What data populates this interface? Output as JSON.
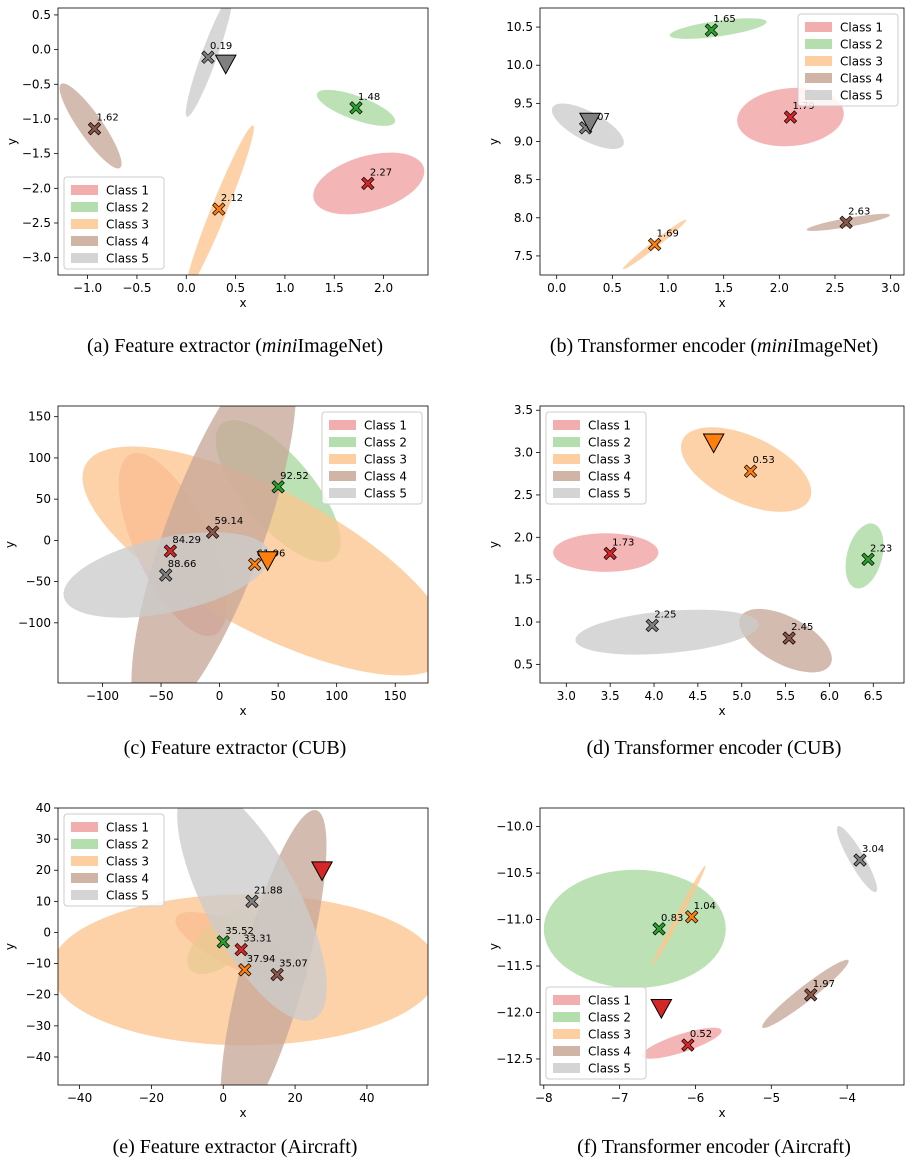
{
  "legend_labels": [
    "Class 1",
    "Class 2",
    "Class 3",
    "Class 4",
    "Class 5"
  ],
  "class_colors": [
    "#d62728",
    "#2ca02c",
    "#ff7f0e",
    "#8c564b",
    "#7f7f7f"
  ],
  "class_fill_colors": [
    "#f0a0a0",
    "#a8d8a0",
    "#fcc58f",
    "#c8a898",
    "#cccccc"
  ],
  "chart_data": [
    {
      "type": "scatter",
      "panel": "a",
      "caption": [
        "(a) Feature extractor (",
        "mini",
        "ImageNet)"
      ],
      "xlabel": "x",
      "ylabel": "y",
      "xlim": [
        -1.3,
        2.45
      ],
      "ylim": [
        -3.25,
        0.6
      ],
      "xticks": [
        -1.0,
        -0.5,
        0.0,
        0.5,
        1.0,
        1.5,
        2.0
      ],
      "xtick_labels": [
        "−1.0",
        "−0.5",
        "0.0",
        "0.5",
        "1.0",
        "1.5",
        "2.0"
      ],
      "yticks": [
        0.5,
        0.0,
        -0.5,
        -1.0,
        -1.5,
        -2.0,
        -2.5,
        -3.0
      ],
      "ytick_labels": [
        "0.5",
        "0.0",
        "−0.5",
        "−1.0",
        "−1.5",
        "−2.0",
        "−2.5",
        "−3.0"
      ],
      "legend": "lower-left",
      "ellipses": [
        {
          "class": 0,
          "cx": 1.85,
          "cy": -1.93,
          "rx": 0.58,
          "ry": 0.28,
          "angle": 16
        },
        {
          "class": 1,
          "cx": 1.72,
          "cy": -0.84,
          "rx": 0.42,
          "ry": 0.12,
          "angle": -20
        },
        {
          "class": 2,
          "cx": 0.34,
          "cy": -2.28,
          "rx": 0.9,
          "ry": 0.08,
          "angle": 68
        },
        {
          "class": 3,
          "cx": -0.97,
          "cy": -1.1,
          "rx": 0.52,
          "ry": 0.12,
          "angle": -55
        },
        {
          "class": 4,
          "cx": 0.23,
          "cy": -0.1,
          "rx": 0.65,
          "ry": 0.08,
          "angle": 70
        }
      ],
      "points": [
        {
          "class": 0,
          "x": 1.84,
          "y": -1.93,
          "label": "2.27"
        },
        {
          "class": 1,
          "x": 1.72,
          "y": -0.84,
          "label": "1.48"
        },
        {
          "class": 2,
          "x": 0.33,
          "y": -2.3,
          "label": "2.12"
        },
        {
          "class": 3,
          "x": -0.93,
          "y": -1.14,
          "label": "1.62"
        },
        {
          "class": 4,
          "x": 0.22,
          "y": -0.11,
          "label": "0.19"
        }
      ],
      "query": {
        "class": 4,
        "x": 0.4,
        "y": -0.2
      }
    },
    {
      "type": "scatter",
      "panel": "b",
      "caption": [
        "(b) Transformer encoder (",
        "mini",
        "ImageNet)"
      ],
      "xlabel": "x",
      "ylabel": "y",
      "xlim": [
        -0.15,
        3.12
      ],
      "ylim": [
        7.25,
        10.75
      ],
      "xticks": [
        0.0,
        0.5,
        1.0,
        1.5,
        2.0,
        2.5,
        3.0
      ],
      "xtick_labels": [
        "0.0",
        "0.5",
        "1.0",
        "1.5",
        "2.0",
        "2.5",
        "3.0"
      ],
      "yticks": [
        10.5,
        10.0,
        9.5,
        9.0,
        8.5,
        8.0,
        7.5
      ],
      "ytick_labels": [
        "10.5",
        "10.0",
        "9.5",
        "9.0",
        "8.5",
        "8.0",
        "7.5"
      ],
      "legend": "upper-right",
      "ellipses": [
        {
          "class": 0,
          "cx": 2.1,
          "cy": 9.32,
          "rx": 0.48,
          "ry": 0.26,
          "angle": 5
        },
        {
          "class": 1,
          "cx": 1.45,
          "cy": 10.48,
          "rx": 0.44,
          "ry": 0.07,
          "angle": 8
        },
        {
          "class": 2,
          "cx": 0.88,
          "cy": 7.65,
          "rx": 0.36,
          "ry": 0.03,
          "angle": 38
        },
        {
          "class": 3,
          "cx": 2.62,
          "cy": 7.94,
          "rx": 0.38,
          "ry": 0.04,
          "angle": 10
        },
        {
          "class": 4,
          "cx": 0.28,
          "cy": 9.2,
          "rx": 0.36,
          "ry": 0.13,
          "angle": -28
        }
      ],
      "points": [
        {
          "class": 0,
          "x": 2.1,
          "y": 9.32,
          "label": "1.79"
        },
        {
          "class": 1,
          "x": 1.39,
          "y": 10.46,
          "label": "1.65"
        },
        {
          "class": 2,
          "x": 0.88,
          "y": 7.65,
          "label": "1.69"
        },
        {
          "class": 3,
          "x": 2.6,
          "y": 7.94,
          "label": "2.63"
        },
        {
          "class": 4,
          "x": 0.26,
          "y": 9.18,
          "label": "0.07"
        }
      ],
      "query": {
        "class": 4,
        "x": 0.3,
        "y": 9.26
      }
    },
    {
      "type": "scatter",
      "panel": "c",
      "caption": [
        "(c) Feature extractor (CUB)"
      ],
      "xlabel": "x",
      "ylabel": "y",
      "xlim": [
        -138,
        178
      ],
      "ylim": [
        -173,
        163
      ],
      "xticks": [
        -100,
        -50,
        0,
        50,
        100,
        150
      ],
      "xtick_labels": [
        "−100",
        "−50",
        "0",
        "50",
        "100",
        "150"
      ],
      "yticks": [
        150,
        100,
        50,
        0,
        -50,
        -100
      ],
      "ytick_labels": [
        "150",
        "100",
        "50",
        "0",
        "−50",
        "−100"
      ],
      "legend": "upper-right",
      "ellipses": [
        {
          "class": 0,
          "cx": -40,
          "cy": -5,
          "rx": 85,
          "ry": 32,
          "angle": -65
        },
        {
          "class": 1,
          "cx": 50,
          "cy": 60,
          "rx": 75,
          "ry": 30,
          "angle": -50
        },
        {
          "class": 2,
          "cx": 40,
          "cy": -25,
          "rx": 175,
          "ry": 60,
          "angle": -28
        },
        {
          "class": 3,
          "cx": -5,
          "cy": 5,
          "rx": 170,
          "ry": 42,
          "angle": 70
        },
        {
          "class": 4,
          "cx": -45,
          "cy": -42,
          "rx": 90,
          "ry": 32,
          "angle": 12
        }
      ],
      "points": [
        {
          "class": 0,
          "x": -42,
          "y": -13,
          "label": "84.29"
        },
        {
          "class": 1,
          "x": 50,
          "y": 65,
          "label": "92.52"
        },
        {
          "class": 2,
          "x": 30,
          "y": -29,
          "label": "61.96"
        },
        {
          "class": 3,
          "x": -6,
          "y": 10,
          "label": "59.14"
        },
        {
          "class": 4,
          "x": -46,
          "y": -42,
          "label": "88.66"
        }
      ],
      "query": {
        "class": 2,
        "x": 41,
        "y": -24
      }
    },
    {
      "type": "scatter",
      "panel": "d",
      "caption": [
        "(d) Transformer encoder (CUB)"
      ],
      "xlabel": "x",
      "ylabel": "y",
      "xlim": [
        2.7,
        6.85
      ],
      "ylim": [
        0.28,
        3.55
      ],
      "xticks": [
        3.0,
        3.5,
        4.0,
        4.5,
        5.0,
        5.5,
        6.0,
        6.5
      ],
      "xtick_labels": [
        "3.0",
        "3.5",
        "4.0",
        "4.5",
        "5.0",
        "5.5",
        "6.0",
        "6.5"
      ],
      "yticks": [
        3.5,
        3.0,
        2.5,
        2.0,
        1.5,
        1.0,
        0.5
      ],
      "ytick_labels": [
        "3.5",
        "3.0",
        "2.5",
        "2.0",
        "1.5",
        "1.0",
        "0.5"
      ],
      "legend": "upper-left",
      "ellipses": [
        {
          "class": 0,
          "cx": 3.45,
          "cy": 1.82,
          "rx": 0.6,
          "ry": 0.22,
          "angle": 0
        },
        {
          "class": 1,
          "cx": 6.4,
          "cy": 1.78,
          "rx": 0.38,
          "ry": 0.2,
          "angle": 75
        },
        {
          "class": 2,
          "cx": 5.05,
          "cy": 2.8,
          "rx": 0.8,
          "ry": 0.38,
          "angle": -25
        },
        {
          "class": 3,
          "cx": 5.5,
          "cy": 0.78,
          "rx": 0.58,
          "ry": 0.27,
          "angle": -28
        },
        {
          "class": 4,
          "cx": 4.15,
          "cy": 0.88,
          "rx": 1.05,
          "ry": 0.24,
          "angle": 5
        }
      ],
      "points": [
        {
          "class": 0,
          "x": 3.5,
          "y": 1.81,
          "label": "1.73"
        },
        {
          "class": 1,
          "x": 6.44,
          "y": 1.74,
          "label": "2.23"
        },
        {
          "class": 2,
          "x": 5.1,
          "y": 2.78,
          "label": "0.53"
        },
        {
          "class": 3,
          "x": 5.54,
          "y": 0.81,
          "label": "2.45"
        },
        {
          "class": 4,
          "x": 3.98,
          "y": 0.96,
          "label": "2.25"
        }
      ],
      "query": {
        "class": 2,
        "x": 4.68,
        "y": 3.12
      }
    },
    {
      "type": "scatter",
      "panel": "e",
      "caption": [
        "(e) Feature extractor (Aircraft)"
      ],
      "xlabel": "x",
      "ylabel": "y",
      "xlim": [
        -46,
        57
      ],
      "ylim": [
        -49,
        40
      ],
      "xticks": [
        -40,
        -20,
        0,
        20,
        40
      ],
      "xtick_labels": [
        "−40",
        "−20",
        "0",
        "20",
        "40"
      ],
      "yticks": [
        40,
        30,
        20,
        10,
        0,
        -10,
        -20,
        -30,
        -40
      ],
      "ytick_labels": [
        "40",
        "30",
        "20",
        "10",
        "0",
        "−10",
        "−20",
        "−30",
        "−40"
      ],
      "legend": "upper-left",
      "ellipses": [
        {
          "class": 0,
          "cx": 5,
          "cy": -5,
          "rx": 20,
          "ry": 6,
          "angle": -25
        },
        {
          "class": 1,
          "cx": 0,
          "cy": -3,
          "rx": 12,
          "ry": 6,
          "angle": 40
        },
        {
          "class": 2,
          "cx": 6,
          "cy": -12,
          "rx": 54,
          "ry": 21,
          "angle": 0
        },
        {
          "class": 3,
          "cx": 14,
          "cy": -12,
          "rx": 46,
          "ry": 9,
          "angle": 75
        },
        {
          "class": 4,
          "cx": 8,
          "cy": 10,
          "rx": 37,
          "ry": 13,
          "angle": -62
        }
      ],
      "points": [
        {
          "class": 0,
          "x": 5,
          "y": -5.5,
          "label": "33.31"
        },
        {
          "class": 1,
          "x": 0,
          "y": -3,
          "label": "35.52"
        },
        {
          "class": 2,
          "x": 6,
          "y": -12,
          "label": "37.94"
        },
        {
          "class": 3,
          "x": 15,
          "y": -13.5,
          "label": "35.07"
        },
        {
          "class": 4,
          "x": 8,
          "y": 10,
          "label": "21.88"
        }
      ],
      "query": {
        "class": 0,
        "x": 27.5,
        "y": 20
      }
    },
    {
      "type": "scatter",
      "panel": "f",
      "caption": [
        "(f) Transformer encoder (Aircraft)"
      ],
      "xlabel": "x",
      "ylabel": "y",
      "xlim": [
        -8.05,
        -3.25
      ],
      "ylim": [
        -12.78,
        -9.8
      ],
      "xticks": [
        -8,
        -7,
        -6,
        -5,
        -4
      ],
      "xtick_labels": [
        "−8",
        "−7",
        "−6",
        "−5",
        "−4"
      ],
      "yticks": [
        -10.0,
        -10.5,
        -11.0,
        -11.5,
        -12.0,
        -12.5
      ],
      "ytick_labels": [
        "−10.0",
        "−10.5",
        "−11.0",
        "−11.5",
        "−12.0",
        "−12.5"
      ],
      "legend": "lower-left",
      "ellipses": [
        {
          "class": 0,
          "cx": -6.18,
          "cy": -12.33,
          "rx": 0.55,
          "ry": 0.12,
          "angle": 18
        },
        {
          "class": 1,
          "cx": -6.8,
          "cy": -11.1,
          "rx": 1.2,
          "ry": 0.78,
          "angle": 0
        },
        {
          "class": 2,
          "cx": -6.22,
          "cy": -10.96,
          "rx": 0.75,
          "ry": 0.04,
          "angle": 62
        },
        {
          "class": 3,
          "cx": -4.55,
          "cy": -11.8,
          "rx": 0.72,
          "ry": 0.1,
          "angle": 38
        },
        {
          "class": 4,
          "cx": -3.87,
          "cy": -10.35,
          "rx": 0.5,
          "ry": 0.1,
          "angle": -60
        }
      ],
      "points": [
        {
          "class": 0,
          "x": -6.1,
          "y": -12.35,
          "label": "0.52"
        },
        {
          "class": 1,
          "x": -6.48,
          "y": -11.1,
          "label": "0.83"
        },
        {
          "class": 2,
          "x": -6.05,
          "y": -10.97,
          "label": "1.04"
        },
        {
          "class": 3,
          "x": -4.48,
          "y": -11.81,
          "label": "1.97"
        },
        {
          "class": 4,
          "x": -3.83,
          "y": -10.36,
          "label": "3.04"
        }
      ],
      "query": {
        "class": 0,
        "x": -6.45,
        "y": -11.95
      }
    }
  ]
}
